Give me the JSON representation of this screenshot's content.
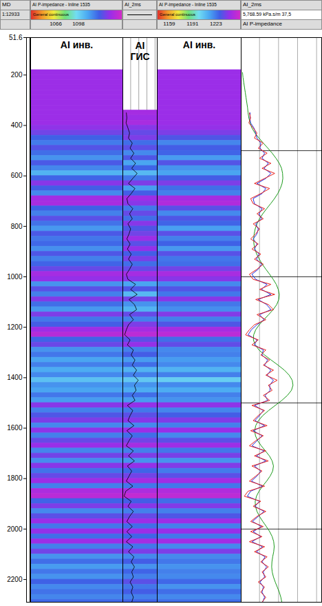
{
  "chart_data": {
    "type": "well_section",
    "ylim": [
      51.6,
      2290
    ],
    "yticks": [
      51.6,
      200,
      400,
      600,
      800,
      1000,
      1200,
      1400,
      1600,
      1800,
      2000,
      2200
    ],
    "depth_track": {
      "title": "MD",
      "subtitle": "1:12933"
    },
    "depths": [
      190,
      210,
      230,
      250,
      270,
      290,
      310,
      330,
      350,
      370,
      390,
      410,
      430,
      450,
      470,
      490,
      510,
      530,
      550,
      570,
      590,
      610,
      630,
      650,
      670,
      690,
      710,
      730,
      750,
      770,
      790,
      810,
      830,
      850,
      870,
      890,
      910,
      930,
      950,
      970,
      990,
      1010,
      1030,
      1050,
      1070,
      1090,
      1110,
      1130,
      1150,
      1170,
      1190,
      1210,
      1230,
      1250,
      1270,
      1290,
      1310,
      1330,
      1350,
      1370,
      1390,
      1410,
      1430,
      1450,
      1470,
      1490,
      1510,
      1530,
      1550,
      1570,
      1590,
      1610,
      1630,
      1650,
      1670,
      1690,
      1710,
      1730,
      1750,
      1770,
      1790,
      1810,
      1830,
      1850,
      1870,
      1890,
      1910,
      1930,
      1950,
      1970,
      1990,
      2010,
      2030,
      2050,
      2070,
      2090,
      2110,
      2130,
      2150,
      2170,
      2190,
      2210,
      2230,
      2250,
      2270,
      2290
    ],
    "colorbar": {
      "name": "General continuous",
      "range": [
        5768.59,
        37500
      ],
      "colors": [
        "#d42ac8",
        "#9a2ee8",
        "#3f5fe6",
        "#4aa8f2",
        "#72dcf2",
        "#6fe07a",
        "#f0ea3c",
        "#f29a2a",
        "#e0302a"
      ]
    },
    "seismic_panels": [
      {
        "title": "AI P-impedance - Inline 1535",
        "label": "AI инв.",
        "xlim": [
          1031,
          1161
        ],
        "xticks": [
          1066,
          1098
        ],
        "values": [
          9600,
          9600,
          9600,
          9600,
          9600,
          9600,
          9600,
          9600,
          9600,
          9600,
          9600,
          10200,
          11500,
          13800,
          15200,
          12800,
          14500,
          16500,
          13200,
          15800,
          18500,
          14000,
          10500,
          13500,
          16000,
          9200,
          8800,
          13800,
          15500,
          12500,
          14800,
          16800,
          13200,
          15000,
          14200,
          16300,
          13000,
          15500,
          14000,
          12000,
          9000,
          10000,
          16500,
          12500,
          15500,
          10800,
          14500,
          16800,
          11000,
          15000,
          13500,
          9500,
          7800,
          14000,
          11800,
          16500,
          15000,
          17500,
          15500,
          18000,
          16000,
          19500,
          16500,
          17500,
          15000,
          17000,
          10500,
          15500,
          13000,
          11000,
          16000,
          10200,
          15500,
          12000,
          9800,
          15800,
          11500,
          16200,
          10500,
          14800,
          12000,
          9500,
          15500,
          8500,
          7600,
          14000,
          11000,
          16000,
          12500,
          9800,
          15000,
          10000,
          14500,
          9500,
          15500,
          11500,
          16500,
          14500,
          17000,
          15000,
          16500,
          13800,
          16000,
          14800,
          15800,
          14200
        ]
      },
      {
        "title": "AI P-impedance - Inline 1535",
        "label": "AI инв.",
        "xlim": [
          1143,
          1258
        ],
        "xticks": [
          1159,
          1191,
          1223
        ],
        "values": [
          9700,
          9700,
          9700,
          9700,
          9700,
          9700,
          9700,
          9700,
          9700,
          9700,
          9700,
          10000,
          11000,
          13000,
          15800,
          13500,
          14000,
          17000,
          12800,
          16500,
          17500,
          13500,
          11000,
          14500,
          15500,
          9000,
          8200,
          12500,
          16000,
          13000,
          14000,
          17200,
          12500,
          15500,
          13800,
          16800,
          12600,
          15000,
          14500,
          11500,
          8800,
          10500,
          16000,
          12800,
          15000,
          10500,
          15000,
          16200,
          10800,
          15500,
          13000,
          9000,
          7600,
          14500,
          12200,
          16000,
          15500,
          17000,
          16000,
          18500,
          15500,
          20500,
          16000,
          18000,
          15500,
          16500,
          10200,
          15800,
          13500,
          10800,
          15500,
          9800,
          16000,
          12500,
          9500,
          15000,
          11200,
          16500,
          10800,
          15200,
          12500,
          9200,
          15000,
          8200,
          7400,
          14500,
          10800,
          15500,
          13000,
          9500,
          15500,
          9800,
          15000,
          9200,
          16000,
          11000,
          16000,
          15000,
          16500,
          15500,
          16000,
          14200,
          16500,
          14500,
          16000,
          14500
        ]
      }
    ],
    "log_panel": {
      "title": "AI_2ms",
      "label": "AI ГИС"
    },
    "log_track": {
      "title": "AI_2ms",
      "subtitle": "5,768.59 kPa.s/m 37,5",
      "caption": "AI P-impedance",
      "xlim": [
        5768.59,
        37500
      ],
      "xticks": [
        13000,
        20500,
        28000,
        35500
      ],
      "tick_labels": false,
      "grid": true,
      "yticks": [
        500,
        1000,
        1500,
        2000
      ],
      "series": [
        {
          "color": "#e8201c",
          "values": [
            null,
            null,
            null,
            null,
            null,
            null,
            null,
            null,
            9000,
            9500,
            8800,
            10500,
            12000,
            11000,
            14500,
            12500,
            16000,
            13000,
            17500,
            14000,
            19000,
            15000,
            11000,
            17000,
            13500,
            9500,
            10500,
            15000,
            12000,
            14500,
            10500,
            13000,
            11500,
            9500,
            12500,
            10000,
            13500,
            11000,
            14500,
            12000,
            9000,
            10500,
            17500,
            13000,
            19000,
            11500,
            16500,
            18500,
            12000,
            15500,
            11000,
            9000,
            7500,
            12500,
            10000,
            15500,
            13500,
            17000,
            14500,
            18500,
            15500,
            20000,
            16500,
            18000,
            14500,
            17000,
            10000,
            15000,
            12500,
            10500,
            16000,
            9500,
            14500,
            11500,
            9000,
            15500,
            11000,
            16500,
            10000,
            14000,
            11500,
            9000,
            15000,
            8500,
            7000,
            13500,
            10500,
            15500,
            12000,
            9500,
            14500,
            9500,
            14000,
            9000,
            15000,
            11000,
            16000,
            13500,
            16500,
            14000,
            15500,
            12500,
            15000,
            13500,
            15500,
            14000
          ]
        },
        {
          "color": "#1f2ee0",
          "values": [
            null,
            null,
            null,
            null,
            null,
            null,
            null,
            null,
            9300,
            9200,
            9500,
            10800,
            11500,
            12000,
            13500,
            13200,
            15000,
            14000,
            16500,
            14800,
            17500,
            15500,
            12000,
            15500,
            14000,
            10500,
            11000,
            14000,
            12800,
            13800,
            11500,
            12500,
            12000,
            10500,
            12000,
            11000,
            12800,
            11800,
            13800,
            12500,
            10000,
            11500,
            16000,
            13800,
            17500,
            12500,
            15800,
            17500,
            13000,
            14800,
            12000,
            9800,
            8500,
            12000,
            11000,
            14500,
            14000,
            16200,
            15000,
            17500,
            16000,
            18500,
            17000,
            17200,
            15200,
            16200,
            11000,
            14500,
            13000,
            11200,
            15000,
            10500,
            14000,
            12000,
            10000,
            14800,
            11800,
            15500,
            11000,
            13500,
            12000,
            9800,
            14200,
            9500,
            8200,
            13000,
            11200,
            14800,
            12500,
            10200,
            13800,
            10500,
            13500,
            10000,
            14200,
            11800,
            15200,
            14000,
            15800,
            14500,
            15000,
            13200,
            14500,
            14000,
            15000,
            14200
          ]
        },
        {
          "color": "#1a9a1a",
          "values": [
            6300,
            6500,
            6800,
            7100,
            7400,
            7700,
            8000,
            8300,
            8500,
            8800,
            9300,
            10000,
            11200,
            12800,
            14500,
            16300,
            18000,
            19500,
            20800,
            21700,
            22100,
            22200,
            21900,
            21200,
            20200,
            18900,
            17400,
            15800,
            14300,
            13000,
            12000,
            11300,
            10900,
            10700,
            10800,
            11200,
            11900,
            12900,
            14100,
            15500,
            17000,
            18400,
            19600,
            20400,
            20800,
            20600,
            19800,
            18400,
            16600,
            14700,
            12900,
            11500,
            10700,
            10600,
            11300,
            12800,
            15000,
            17600,
            20300,
            22800,
            24700,
            25900,
            26200,
            25600,
            24000,
            21800,
            19200,
            16600,
            14300,
            12600,
            11500,
            11100,
            11400,
            12300,
            13700,
            15300,
            16900,
            18000,
            18500,
            18200,
            17200,
            15800,
            14200,
            12800,
            11800,
            11300,
            11400,
            12000,
            13000,
            14300,
            15700,
            17000,
            18000,
            18600,
            18800,
            18600,
            18200,
            17900,
            17800,
            18000,
            18500,
            19200,
            20000,
            20800,
            21400,
            21800
          ]
        }
      ]
    }
  }
}
